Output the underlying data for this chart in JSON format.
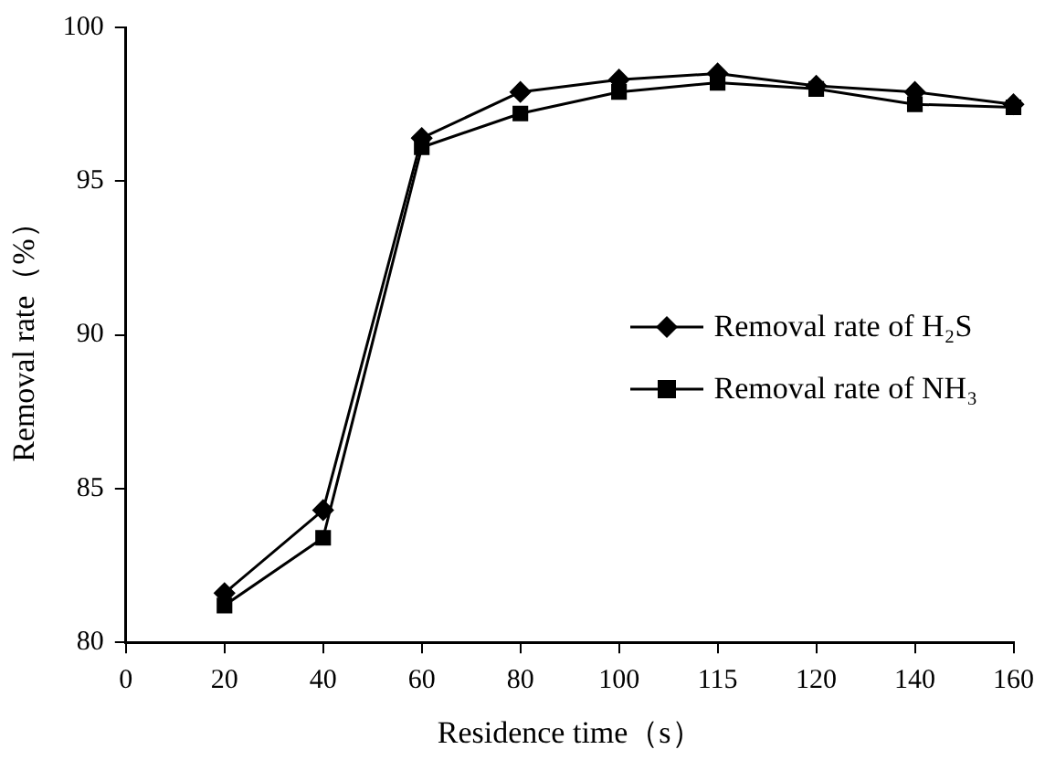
{
  "chart_data": {
    "type": "line",
    "xlabel": "Residence time（s）",
    "ylabel": "Removal rate（%）",
    "categories": [
      "0",
      "20",
      "40",
      "60",
      "80",
      "100",
      "115",
      "120",
      "140",
      "160"
    ],
    "series": [
      {
        "name": "Removal rate of H₂S",
        "color": "#000000",
        "marker": "diamond",
        "values": [
          null,
          81.6,
          84.3,
          96.4,
          97.9,
          98.3,
          98.5,
          98.1,
          97.9,
          97.5
        ]
      },
      {
        "name": "Removal rate of NH₃",
        "color": "#000000",
        "marker": "square",
        "values": [
          null,
          81.2,
          83.4,
          96.1,
          97.2,
          97.9,
          98.2,
          98.0,
          97.5,
          97.4
        ]
      }
    ],
    "ylim": [
      80,
      100
    ],
    "yticks": [
      80,
      85,
      90,
      95,
      100
    ],
    "grid": false,
    "legend": "right",
    "line_style": "solid"
  }
}
